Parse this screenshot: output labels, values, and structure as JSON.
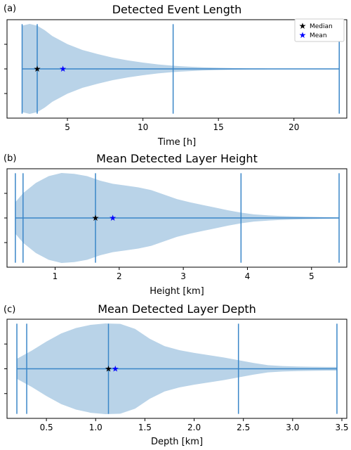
{
  "legend": {
    "median_label": "Median",
    "mean_label": "Mean",
    "placement": "top-right"
  },
  "colors": {
    "violin_fill": "#b9d3e8",
    "line": "#3a86c8",
    "median_marker": "#000000",
    "mean_marker": "#0000ff"
  },
  "chart_data": [
    {
      "type": "violin",
      "panel_label": "(a)",
      "title": "Detected Event Length",
      "xlabel": "Time [h]",
      "xlim": [
        1.0,
        23.5
      ],
      "xticks": [
        5,
        10,
        15,
        20
      ],
      "tick_labels": [
        "5",
        "10",
        "15",
        "20"
      ],
      "min": 2.0,
      "max": 23.0,
      "quantile_lines": [
        3.0,
        12.0
      ],
      "median": 3.0,
      "mean": 4.7,
      "show_legend": true,
      "density": [
        [
          2.0,
          0.96
        ],
        [
          2.5,
          1.0
        ],
        [
          3.0,
          0.96
        ],
        [
          3.5,
          0.86
        ],
        [
          4.0,
          0.73
        ],
        [
          5.0,
          0.55
        ],
        [
          6.0,
          0.42
        ],
        [
          7.0,
          0.33
        ],
        [
          8.0,
          0.25
        ],
        [
          9.0,
          0.19
        ],
        [
          10.0,
          0.14
        ],
        [
          11.0,
          0.1
        ],
        [
          12.0,
          0.07
        ],
        [
          13.0,
          0.05
        ],
        [
          14.0,
          0.035
        ],
        [
          15.0,
          0.025
        ],
        [
          16.0,
          0.018
        ],
        [
          17.0,
          0.012
        ],
        [
          18.0,
          0.009
        ],
        [
          19.0,
          0.007
        ],
        [
          20.0,
          0.005
        ],
        [
          21.0,
          0.004
        ],
        [
          22.0,
          0.003
        ],
        [
          23.0,
          0.002
        ]
      ]
    },
    {
      "type": "violin",
      "panel_label": "(b)",
      "title": "Mean Detected Layer Height",
      "xlabel": "Height [km]",
      "xlim": [
        0.25,
        5.55
      ],
      "xticks": [
        1,
        2,
        3,
        4,
        5
      ],
      "tick_labels": [
        "1",
        "2",
        "3",
        "4",
        "5"
      ],
      "min": 0.38,
      "max": 5.43,
      "quantile_lines": [
        0.5,
        1.63,
        3.9
      ],
      "median": 1.63,
      "mean": 1.9,
      "show_legend": false,
      "density": [
        [
          0.38,
          0.35
        ],
        [
          0.5,
          0.55
        ],
        [
          0.7,
          0.78
        ],
        [
          0.9,
          0.93
        ],
        [
          1.1,
          1.0
        ],
        [
          1.3,
          0.98
        ],
        [
          1.5,
          0.93
        ],
        [
          1.7,
          0.83
        ],
        [
          1.9,
          0.76
        ],
        [
          2.1,
          0.72
        ],
        [
          2.3,
          0.68
        ],
        [
          2.5,
          0.62
        ],
        [
          2.7,
          0.52
        ],
        [
          2.9,
          0.42
        ],
        [
          3.1,
          0.35
        ],
        [
          3.3,
          0.29
        ],
        [
          3.5,
          0.23
        ],
        [
          3.7,
          0.17
        ],
        [
          3.9,
          0.12
        ],
        [
          4.1,
          0.08
        ],
        [
          4.3,
          0.06
        ],
        [
          4.5,
          0.045
        ],
        [
          4.7,
          0.035
        ],
        [
          4.9,
          0.028
        ],
        [
          5.1,
          0.022
        ],
        [
          5.3,
          0.016
        ],
        [
          5.43,
          0.012
        ]
      ]
    },
    {
      "type": "violin",
      "panel_label": "(c)",
      "title": "Mean Detected Layer Depth",
      "xlabel": "Depth [km]",
      "xlim": [
        0.1,
        3.55
      ],
      "xticks": [
        0.5,
        1.0,
        1.5,
        2.0,
        2.5,
        3.0,
        3.5
      ],
      "tick_labels": [
        "0.5",
        "1.0",
        "1.5",
        "2.0",
        "2.5",
        "3.0",
        "3.5"
      ],
      "min": 0.2,
      "max": 3.45,
      "quantile_lines": [
        0.3,
        1.13,
        2.45
      ],
      "median": 1.13,
      "mean": 1.2,
      "show_legend": false,
      "density": [
        [
          0.2,
          0.22
        ],
        [
          0.35,
          0.4
        ],
        [
          0.5,
          0.6
        ],
        [
          0.65,
          0.78
        ],
        [
          0.8,
          0.9
        ],
        [
          0.95,
          0.97
        ],
        [
          1.1,
          1.0
        ],
        [
          1.25,
          0.99
        ],
        [
          1.4,
          0.88
        ],
        [
          1.55,
          0.66
        ],
        [
          1.7,
          0.5
        ],
        [
          1.85,
          0.41
        ],
        [
          2.0,
          0.35
        ],
        [
          2.15,
          0.3
        ],
        [
          2.3,
          0.25
        ],
        [
          2.45,
          0.19
        ],
        [
          2.6,
          0.13
        ],
        [
          2.75,
          0.08
        ],
        [
          2.9,
          0.06
        ],
        [
          3.05,
          0.05
        ],
        [
          3.2,
          0.045
        ],
        [
          3.35,
          0.04
        ],
        [
          3.45,
          0.04
        ]
      ]
    }
  ]
}
